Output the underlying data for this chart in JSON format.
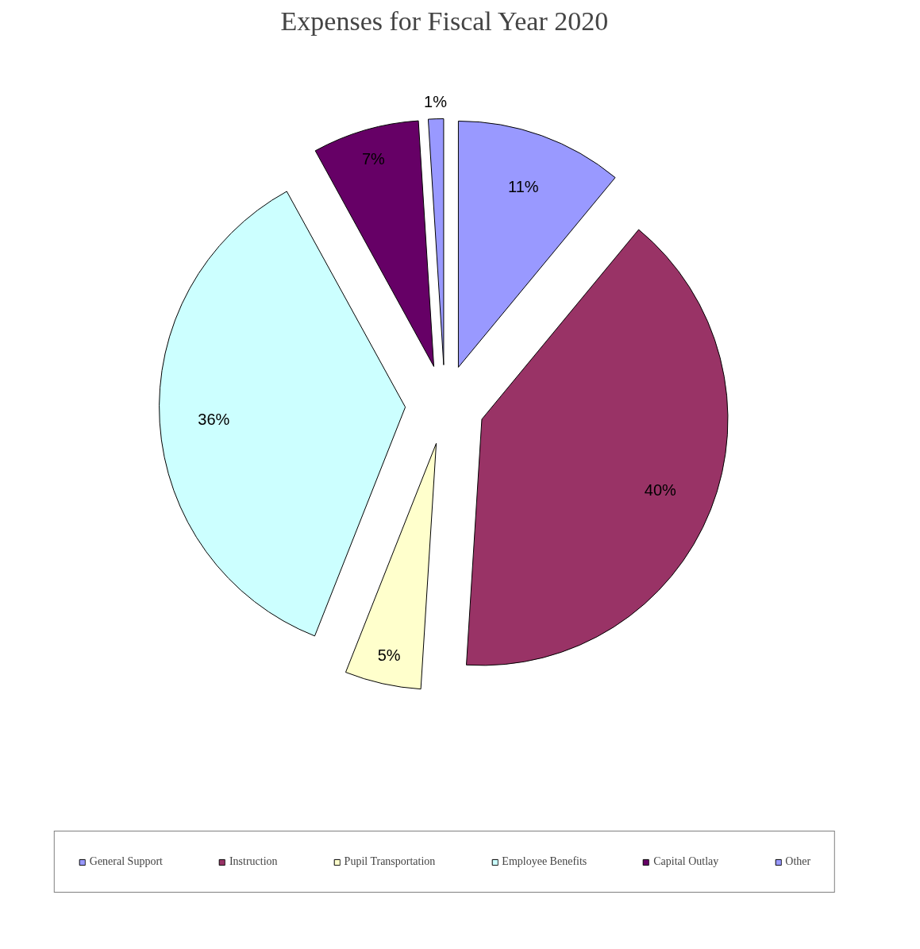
{
  "chart_data": {
    "type": "pie",
    "title": "Expenses for Fiscal Year 2020",
    "categories": [
      "General Support",
      "Instruction",
      "Pupil Transportation",
      "Employee Benefits",
      "Capital Outlay",
      "Other"
    ],
    "values": [
      11,
      40,
      5,
      36,
      7,
      1
    ],
    "colors": [
      "#9999ff",
      "#993366",
      "#ffffcc",
      "#ccffff",
      "#660066",
      "#9999ff"
    ],
    "value_labels": [
      "11%",
      "40%",
      "5%",
      "36%",
      "7%",
      "1%"
    ],
    "legend": "bottom"
  }
}
